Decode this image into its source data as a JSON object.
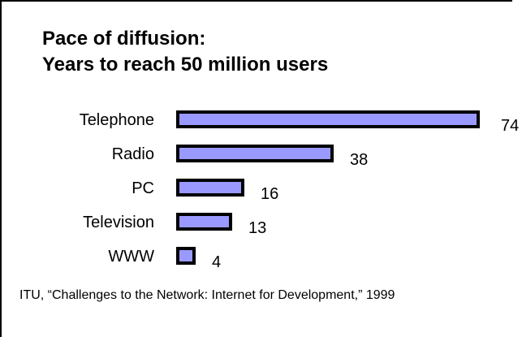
{
  "chart_data": {
    "type": "bar",
    "orientation": "horizontal",
    "title": "Pace of diffusion:",
    "subtitle": "Years to reach 50 million users",
    "categories": [
      "Telephone",
      "Radio",
      "PC",
      "Television",
      "WWW"
    ],
    "values": [
      74,
      38,
      16,
      13,
      4
    ],
    "bar_color": "#9999ff",
    "bar_edge_color": "#000000",
    "grid": false,
    "source": "ITU, “Challenges to the Network: Internet for Development,” 1999"
  }
}
